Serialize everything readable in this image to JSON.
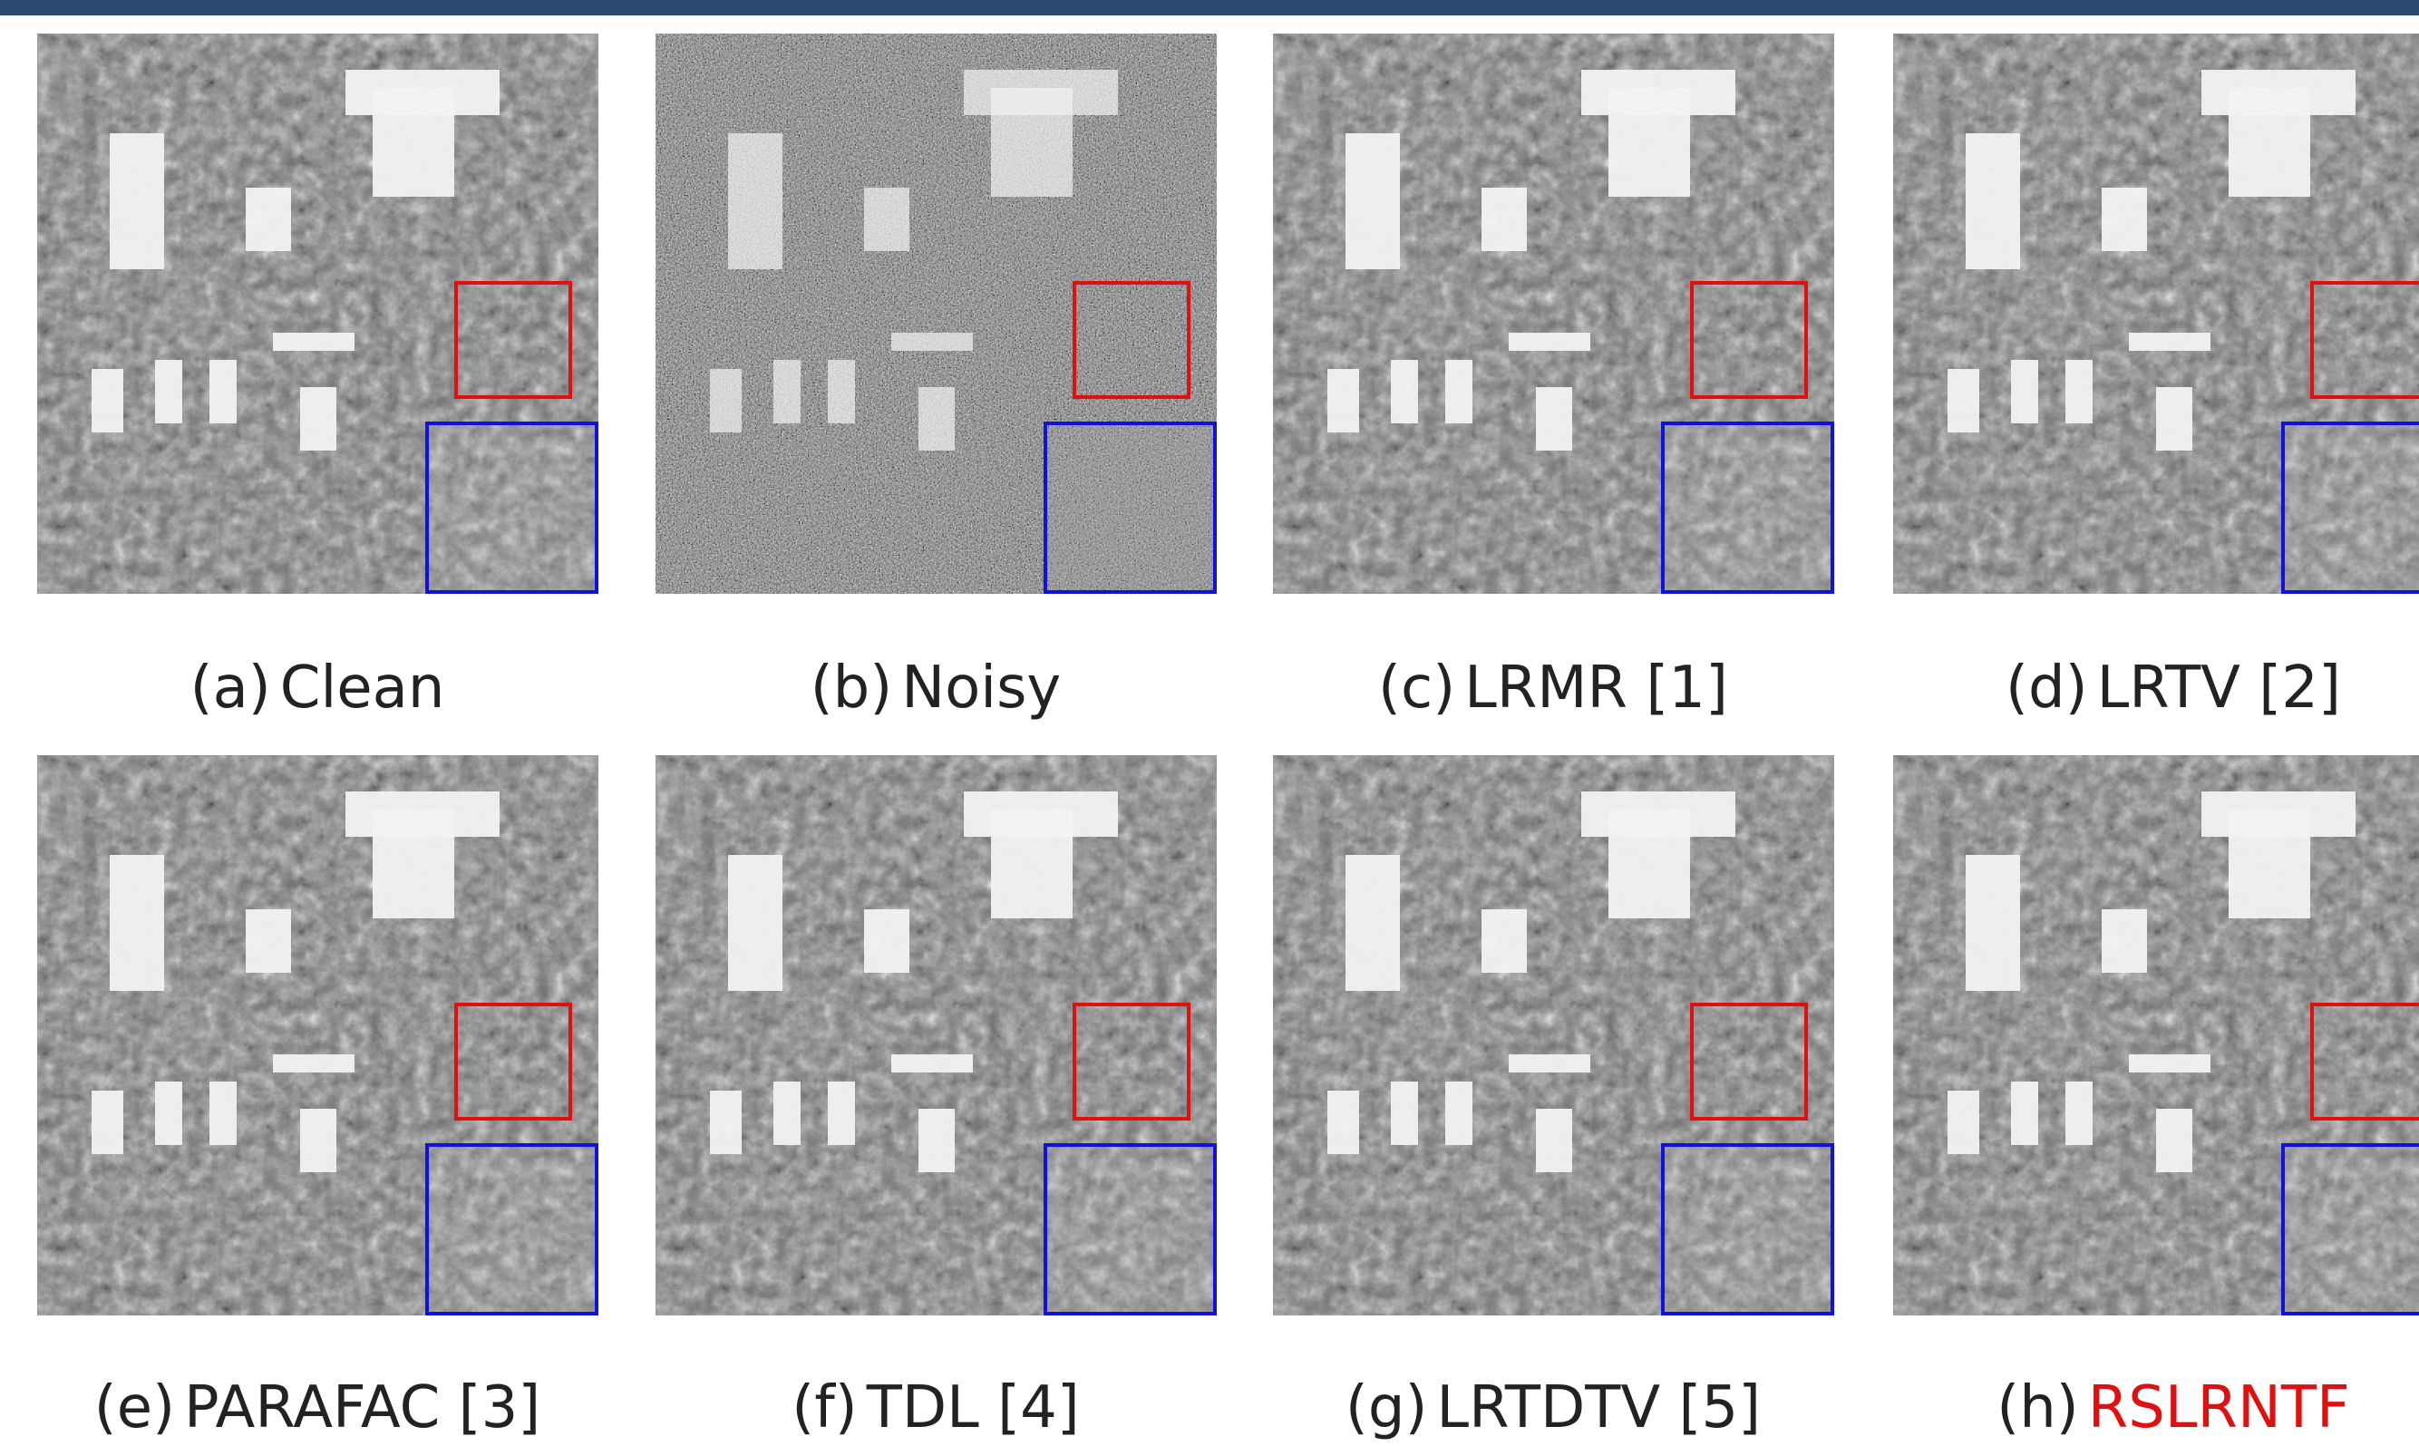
{
  "panels": [
    {
      "tag": "(a)",
      "name": "Clean"
    },
    {
      "tag": "(b)",
      "name": "Noisy"
    },
    {
      "tag": "(c)",
      "name": "LRMR [1]"
    },
    {
      "tag": "(d)",
      "name": "LRTV [2]"
    },
    {
      "tag": "(e)",
      "name": "PARAFAC [3]"
    },
    {
      "tag": "(f)",
      "name": "TDL [4]"
    },
    {
      "tag": "(g)",
      "name": "LRTDTV [5]"
    },
    {
      "tag": "(h)",
      "name": "RSLRNTF"
    }
  ]
}
